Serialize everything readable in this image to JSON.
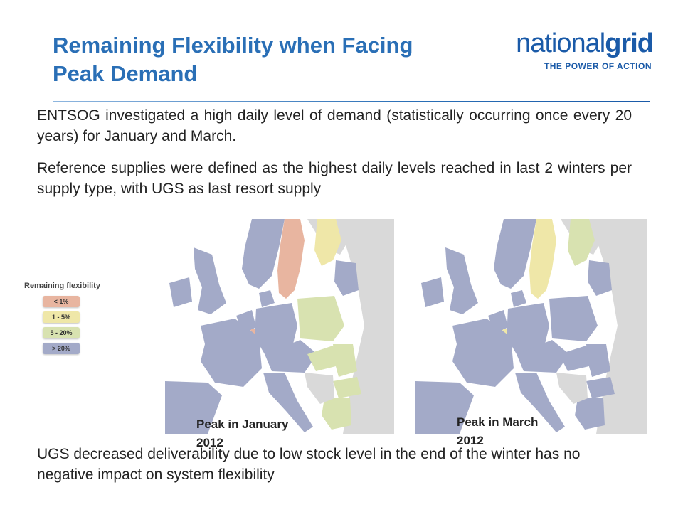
{
  "header": {
    "title_line1": "Remaining Flexibility when Facing",
    "title_line2": "Peak Demand"
  },
  "logo": {
    "word_light": "national",
    "word_bold": "grid",
    "tagline": "THE POWER OF ACTION"
  },
  "body": {
    "p1": "ENTSOG investigated a high daily level of demand (statistically occurring once every 20 years) for January and March.",
    "p2": "Reference supplies were defined as the highest daily levels reached in last 2 winters per supply type, with UGS as last resort supply",
    "p3": "UGS decreased deliverability due to low stock level in the end of the winter has no negative impact on system flexibility"
  },
  "legend": {
    "title": "Remaining flexibility",
    "items": [
      {
        "label": "< 1%",
        "color": "#e8b5a0"
      },
      {
        "label": "1 - 5%",
        "color": "#efe7a8"
      },
      {
        "label": "5 - 20%",
        "color": "#d8e2b0"
      },
      {
        "label": "> 20%",
        "color": "#a3aac8"
      }
    ]
  },
  "maps": {
    "january": {
      "label_line1": "Peak in January",
      "label_line2": "2012",
      "regions": {
        "norway": "> 20%",
        "sweden": "< 1%",
        "finland": "1 - 5%",
        "poland": "5 - 20%",
        "hungary": "5 - 20%",
        "romania": "5 - 20%",
        "bulgaria": "5 - 20%",
        "greece": "5 - 20%",
        "luxembourg": "< 1%"
      }
    },
    "march": {
      "label_line1": "Peak in March",
      "label_line2": "2012",
      "regions": {
        "sweden": "1 - 5%",
        "finland": "5 - 20%",
        "luxembourg": "1 - 5%"
      }
    }
  },
  "colors": {
    "title": "#2a6fb6",
    "flex_gt20": "#a3aac8",
    "flex_5_20": "#d8e2b0",
    "flex_1_5": "#efe7a8",
    "flex_lt1": "#e8b5a0",
    "non_eu": "#d9d9d9",
    "sea": "#ffffff"
  }
}
